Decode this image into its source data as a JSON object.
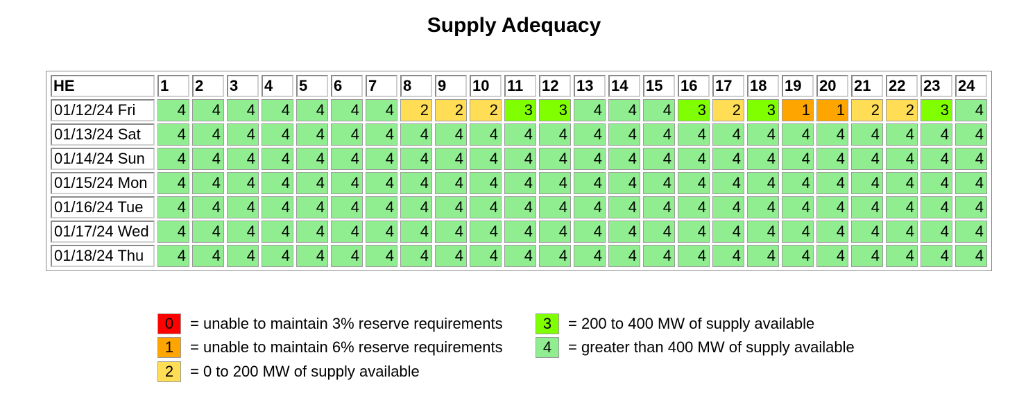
{
  "title": "Supply Adequacy",
  "chart_data": {
    "type": "table",
    "corner_label": "HE",
    "columns": [
      "1",
      "2",
      "3",
      "4",
      "5",
      "6",
      "7",
      "8",
      "9",
      "10",
      "11",
      "12",
      "13",
      "14",
      "15",
      "16",
      "17",
      "18",
      "19",
      "20",
      "21",
      "22",
      "23",
      "24"
    ],
    "rows": [
      {
        "label": "01/12/24 Fri",
        "values": [
          4,
          4,
          4,
          4,
          4,
          4,
          4,
          2,
          2,
          2,
          3,
          3,
          4,
          4,
          4,
          3,
          2,
          3,
          1,
          1,
          2,
          2,
          3,
          4
        ]
      },
      {
        "label": "01/13/24 Sat",
        "values": [
          4,
          4,
          4,
          4,
          4,
          4,
          4,
          4,
          4,
          4,
          4,
          4,
          4,
          4,
          4,
          4,
          4,
          4,
          4,
          4,
          4,
          4,
          4,
          4
        ]
      },
      {
        "label": "01/14/24 Sun",
        "values": [
          4,
          4,
          4,
          4,
          4,
          4,
          4,
          4,
          4,
          4,
          4,
          4,
          4,
          4,
          4,
          4,
          4,
          4,
          4,
          4,
          4,
          4,
          4,
          4
        ]
      },
      {
        "label": "01/15/24 Mon",
        "values": [
          4,
          4,
          4,
          4,
          4,
          4,
          4,
          4,
          4,
          4,
          4,
          4,
          4,
          4,
          4,
          4,
          4,
          4,
          4,
          4,
          4,
          4,
          4,
          4
        ]
      },
      {
        "label": "01/16/24 Tue",
        "values": [
          4,
          4,
          4,
          4,
          4,
          4,
          4,
          4,
          4,
          4,
          4,
          4,
          4,
          4,
          4,
          4,
          4,
          4,
          4,
          4,
          4,
          4,
          4,
          4
        ]
      },
      {
        "label": "01/17/24 Wed",
        "values": [
          4,
          4,
          4,
          4,
          4,
          4,
          4,
          4,
          4,
          4,
          4,
          4,
          4,
          4,
          4,
          4,
          4,
          4,
          4,
          4,
          4,
          4,
          4,
          4
        ]
      },
      {
        "label": "01/18/24 Thu",
        "values": [
          4,
          4,
          4,
          4,
          4,
          4,
          4,
          4,
          4,
          4,
          4,
          4,
          4,
          4,
          4,
          4,
          4,
          4,
          4,
          4,
          4,
          4,
          4,
          4
        ]
      }
    ],
    "level_colors": {
      "0": "#ff0000",
      "1": "#ffa500",
      "2": "#ffdd55",
      "3": "#7fff00",
      "4": "#90ee90"
    }
  },
  "legend": [
    {
      "value": "0",
      "text": "= unable to maintain 3% reserve requirements",
      "color": "#ff0000"
    },
    {
      "value": "1",
      "text": "= unable to maintain 6% reserve requirements",
      "color": "#ffa500"
    },
    {
      "value": "2",
      "text": "= 0 to 200 MW of supply available",
      "color": "#ffdd55"
    },
    {
      "value": "3",
      "text": "= 200 to 400 MW of supply available",
      "color": "#7fff00"
    },
    {
      "value": "4",
      "text": "= greater than 400 MW of supply available",
      "color": "#90ee90"
    }
  ]
}
